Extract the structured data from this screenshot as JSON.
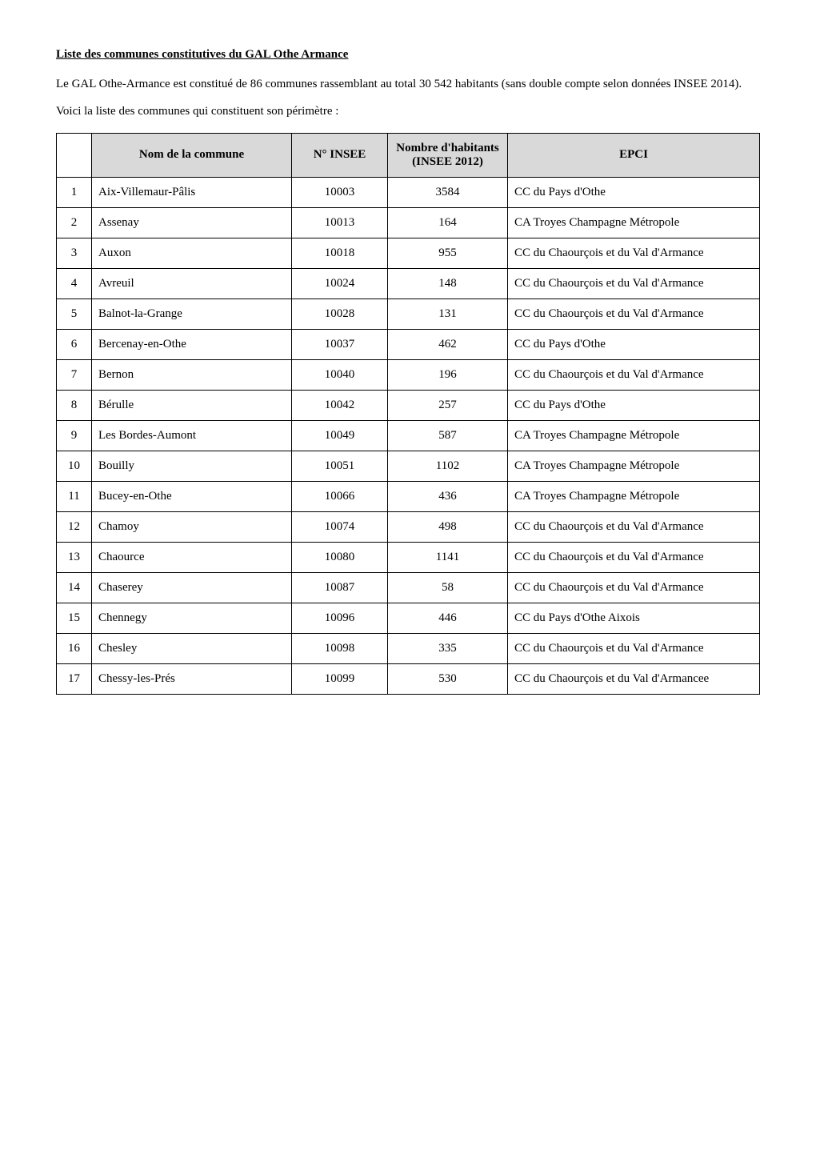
{
  "title": "Liste des communes constitutives du GAL Othe Armance",
  "intro1": "Le GAL Othe-Armance est constitué de 86 communes rassemblant au total 30 542 habitants (sans double compte selon données INSEE 2014).",
  "intro2": "Voici la liste des communes qui constituent son périmètre :",
  "table": {
    "columns": {
      "name": "Nom de la commune",
      "insee": "N° INSEE",
      "pop": "Nombre d'habitants (INSEE 2012)",
      "epci": "EPCI"
    },
    "header_bg": "#d9d9d9",
    "border_color": "#000000",
    "rows": [
      {
        "idx": "1",
        "name": "Aix-Villemaur-Pâlis",
        "insee": "10003",
        "pop": "3584",
        "epci": "CC du Pays d'Othe"
      },
      {
        "idx": "2",
        "name": "Assenay",
        "insee": "10013",
        "pop": "164",
        "epci": "CA Troyes Champagne Métropole"
      },
      {
        "idx": "3",
        "name": "Auxon",
        "insee": "10018",
        "pop": "955",
        "epci": "CC du Chaourçois et du Val d'Armance"
      },
      {
        "idx": "4",
        "name": "Avreuil",
        "insee": "10024",
        "pop": "148",
        "epci": "CC du Chaourçois et du Val d'Armance"
      },
      {
        "idx": "5",
        "name": "Balnot-la-Grange",
        "insee": "10028",
        "pop": "131",
        "epci": "CC du Chaourçois et du Val d'Armance"
      },
      {
        "idx": "6",
        "name": "Bercenay-en-Othe",
        "insee": "10037",
        "pop": "462",
        "epci": "CC du Pays d'Othe"
      },
      {
        "idx": "7",
        "name": "Bernon",
        "insee": "10040",
        "pop": "196",
        "epci": "CC du Chaourçois et du Val d'Armance"
      },
      {
        "idx": "8",
        "name": "Bérulle",
        "insee": "10042",
        "pop": "257",
        "epci": "CC du Pays d'Othe"
      },
      {
        "idx": "9",
        "name": "Les Bordes-Aumont",
        "insee": "10049",
        "pop": "587",
        "epci": "CA Troyes Champagne Métropole"
      },
      {
        "idx": "10",
        "name": "Bouilly",
        "insee": "10051",
        "pop": "1102",
        "epci": "CA Troyes Champagne Métropole"
      },
      {
        "idx": "11",
        "name": "Bucey-en-Othe",
        "insee": "10066",
        "pop": "436",
        "epci": "CA Troyes Champagne Métropole"
      },
      {
        "idx": "12",
        "name": "Chamoy",
        "insee": "10074",
        "pop": "498",
        "epci": "CC du Chaourçois et du Val d'Armance"
      },
      {
        "idx": "13",
        "name": "Chaource",
        "insee": "10080",
        "pop": "1141",
        "epci": "CC du Chaourçois et du Val d'Armance"
      },
      {
        "idx": "14",
        "name": "Chaserey",
        "insee": "10087",
        "pop": "58",
        "epci": "CC du Chaourçois et du Val d'Armance"
      },
      {
        "idx": "15",
        "name": "Chennegy",
        "insee": "10096",
        "pop": "446",
        "epci": "CC du Pays d'Othe Aixois"
      },
      {
        "idx": "16",
        "name": "Chesley",
        "insee": "10098",
        "pop": "335",
        "epci": "CC du Chaourçois et du Val d'Armance"
      },
      {
        "idx": "17",
        "name": "Chessy-les-Prés",
        "insee": "10099",
        "pop": "530",
        "epci": "CC du Chaourçois et du Val d'Armancee"
      }
    ]
  }
}
